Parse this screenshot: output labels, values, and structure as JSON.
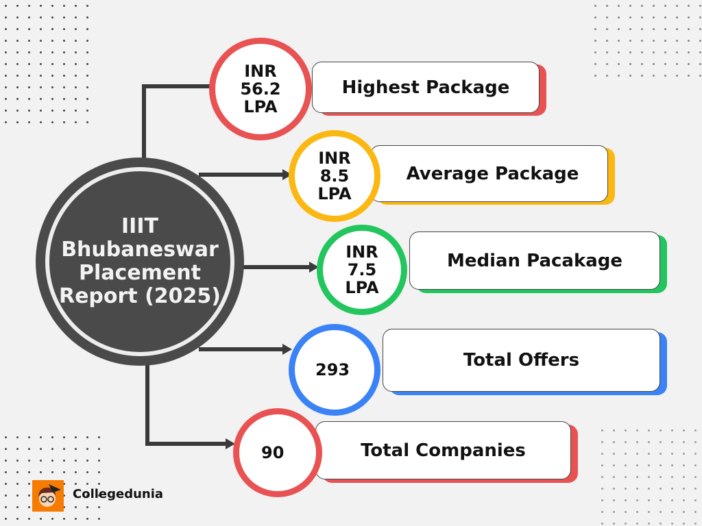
{
  "hub": {
    "title": "IIIT Bhubaneswar Placement Report (2025)"
  },
  "items": [
    {
      "value": "INR 56.2 LPA",
      "label": "Highest Package",
      "color": "#e85252"
    },
    {
      "value": "INR 8.5 LPA",
      "label": "Average Package",
      "color": "#fbb812"
    },
    {
      "value": "INR 7.5 LPA",
      "label": "Median Pacakage",
      "color": "#22c55e"
    },
    {
      "value": "293",
      "label": "Total Offers",
      "color": "#3b82f6"
    },
    {
      "value": "90",
      "label": "Total Companies",
      "color": "#e85252"
    }
  ],
  "brand": {
    "name": "Collegedunia",
    "logo_color": "#f57c00"
  }
}
